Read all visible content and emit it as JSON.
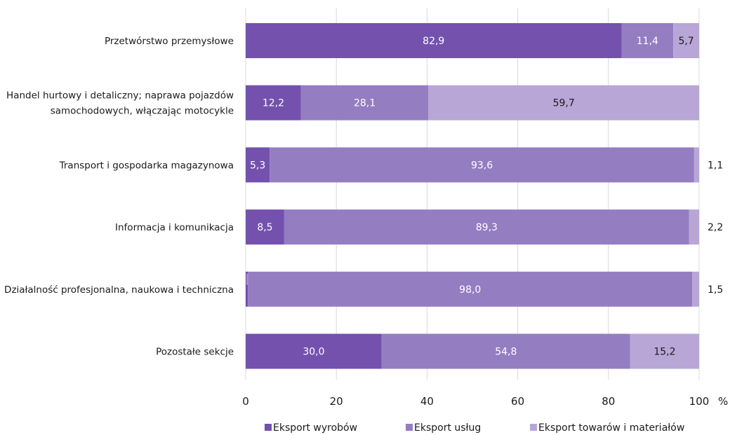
{
  "chart_data": {
    "type": "bar",
    "orientation": "horizontal",
    "stacked": true,
    "categories": [
      "Przetwórstwo przemysłowe",
      "Handel hurtowy i detaliczny; naprawa pojazdów samochodowych, włączając motocykle",
      "Transport i gospodarka magazynowa",
      "Informacja i komunikacja",
      "Działalność profesjonalna, naukowa i techniczna",
      "Pozostałe sekcje"
    ],
    "category_lines": [
      [
        "Przetwórstwo przemysłowe"
      ],
      [
        "Handel hurtowy i detaliczny; naprawa pojazdów",
        "samochodowych, włączając motocykle"
      ],
      [
        "Transport i gospodarka magazynowa"
      ],
      [
        "Informacja i komunikacja"
      ],
      [
        "Działalność profesjonalna, naukowa i techniczna"
      ],
      [
        "Pozostałe sekcje"
      ]
    ],
    "series": [
      {
        "name": "Eksport wyrobów",
        "color": "#7451ad",
        "values": [
          82.9,
          12.2,
          5.3,
          8.5,
          0.5,
          30.0
        ],
        "labels": [
          "82,9",
          "12,2",
          "5,3",
          "8,5",
          "0,5",
          "30,0"
        ]
      },
      {
        "name": "Eksport usług",
        "color": "#957dc2",
        "values": [
          11.4,
          28.1,
          93.6,
          89.3,
          98.0,
          54.8
        ],
        "labels": [
          "11,4",
          "28,1",
          "93,6",
          "89,3",
          "98,0",
          "54,8"
        ]
      },
      {
        "name": "Eksport towarów i materiałów",
        "color": "#b8a6d7",
        "values": [
          5.7,
          59.7,
          1.1,
          2.2,
          1.5,
          15.2
        ],
        "labels": [
          "5,7",
          "59,7",
          "1,1",
          "2,2",
          "1,5",
          "15,2"
        ]
      }
    ],
    "xlim": [
      0,
      100
    ],
    "xticks": [
      0,
      20,
      40,
      60,
      80,
      100
    ],
    "xtick_labels": [
      "0",
      "20",
      "40",
      "60",
      "80",
      "100"
    ],
    "x_unit": "%",
    "title": "",
    "xlabel": "",
    "ylabel": "",
    "grid": true,
    "legend_position": "bottom"
  }
}
